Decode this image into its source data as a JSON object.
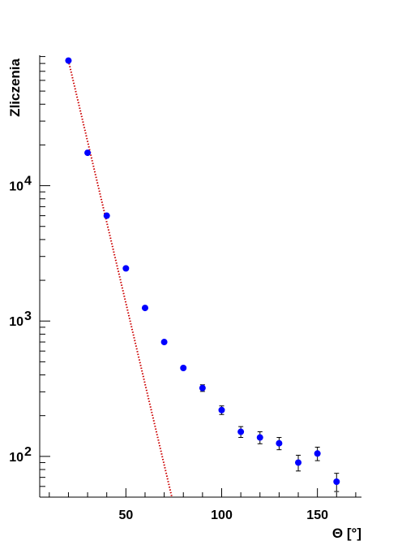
{
  "chart_data": {
    "type": "scatter",
    "xlabel": "Θ [°]",
    "ylabel": "Zliczenia",
    "x_ticks": [
      50,
      100,
      150
    ],
    "x_tick_labels": [
      "50",
      "100",
      "150"
    ],
    "y_ticks": [
      100,
      1000,
      10000
    ],
    "y_tick_labels": [
      {
        "base": "10",
        "exp": "2"
      },
      {
        "base": "10",
        "exp": "3"
      },
      {
        "base": "10",
        "exp": "4"
      }
    ],
    "xlim": [
      5,
      173
    ],
    "ylim": [
      50,
      92000
    ],
    "y_scale": "log",
    "grid": false,
    "series": [
      {
        "kind": "points",
        "color": "#0000ff",
        "x": [
          20,
          30,
          40,
          50,
          60,
          70,
          80,
          90,
          100,
          110,
          120,
          130,
          140,
          150,
          160
        ],
        "y": [
          84000,
          17500,
          6000,
          2450,
          1250,
          700,
          450,
          320,
          220,
          152,
          138,
          125,
          90,
          105,
          65
        ],
        "yerr": [
          0,
          0,
          0,
          0,
          0,
          0,
          0,
          18,
          16,
          14,
          14,
          13,
          12,
          12,
          10
        ]
      },
      {
        "kind": "fit-line",
        "color": "#cc0000",
        "style": "dotted",
        "x": [
          20,
          74
        ],
        "y": [
          84000,
          50
        ]
      }
    ]
  }
}
